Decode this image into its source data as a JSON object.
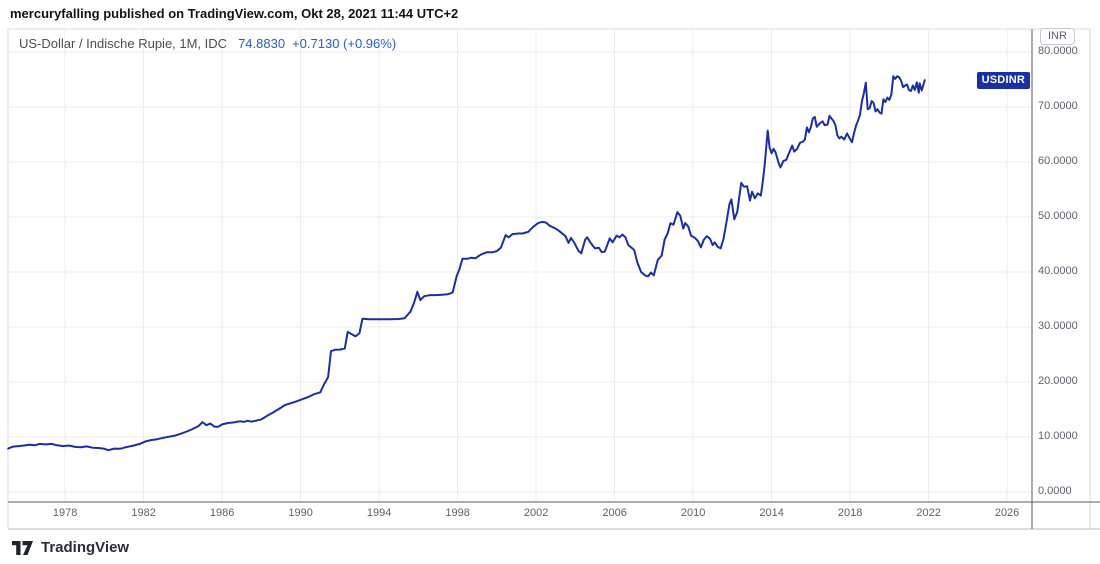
{
  "attribution": {
    "text": "mercuryfalling published on TradingView.com, Okt 28, 2021 11:44 UTC+2"
  },
  "legend": {
    "symbol_title": "US-Dollar / Indische Rupie, 1M, IDC",
    "price": "74.8830",
    "change": "+0.7130 (+0.96%)"
  },
  "price_axis": {
    "currency_badge": "INR",
    "labels": [
      "80.0000",
      "70.0000",
      "60.0000",
      "50.0000",
      "40.0000",
      "30.0000",
      "20.0000",
      "10.0000",
      "0.0000"
    ]
  },
  "time_axis": {
    "labels": [
      "1978",
      "1982",
      "1986",
      "1990",
      "1994",
      "1998",
      "2002",
      "2006",
      "2010",
      "2014",
      "2018",
      "2022",
      "2026"
    ]
  },
  "series_badge": {
    "label": "USDINR"
  },
  "footer": {
    "brand": "TradingView"
  },
  "colors": {
    "line": "#1b2fa4",
    "value_text": "#2a5bd7",
    "grid": "#ededf0",
    "axis_line": "#555a64",
    "frame": "#d8dbe1"
  },
  "chart_data": {
    "type": "line",
    "title": "US-Dollar / Indische Rupie, 1M, IDC",
    "symbol": "USDINR",
    "interval": "1M",
    "exchange": "IDC",
    "last_price": 74.883,
    "change_abs": 0.713,
    "change_pct": 0.96,
    "ylabel": "INR",
    "grid": true,
    "legend_position": "none",
    "xlim": [
      1975.09,
      2027.27
    ],
    "ylim": [
      0,
      80
    ],
    "x_ticks": [
      1978,
      1982,
      1986,
      1990,
      1994,
      1998,
      2002,
      2006,
      2010,
      2014,
      2018,
      2022,
      2026
    ],
    "y_ticks_desc": [
      80,
      70,
      60,
      50,
      40,
      30,
      20,
      10,
      0
    ],
    "points": [
      [
        1975.1,
        7.9
      ],
      [
        1975.35,
        8.25
      ],
      [
        1975.6,
        8.35
      ],
      [
        1975.9,
        8.45
      ],
      [
        1976.2,
        8.6
      ],
      [
        1976.45,
        8.5
      ],
      [
        1976.7,
        8.75
      ],
      [
        1977.0,
        8.65
      ],
      [
        1977.3,
        8.75
      ],
      [
        1977.6,
        8.5
      ],
      [
        1977.9,
        8.35
      ],
      [
        1978.2,
        8.45
      ],
      [
        1978.5,
        8.2
      ],
      [
        1978.8,
        8.15
      ],
      [
        1979.1,
        8.3
      ],
      [
        1979.4,
        8.05
      ],
      [
        1979.7,
        8.0
      ],
      [
        1980.0,
        7.85
      ],
      [
        1980.2,
        7.6
      ],
      [
        1980.5,
        7.9
      ],
      [
        1980.8,
        7.85
      ],
      [
        1981.1,
        8.15
      ],
      [
        1981.5,
        8.45
      ],
      [
        1981.8,
        8.75
      ],
      [
        1982.1,
        9.2
      ],
      [
        1982.4,
        9.45
      ],
      [
        1982.7,
        9.6
      ],
      [
        1983.0,
        9.85
      ],
      [
        1983.3,
        10.05
      ],
      [
        1983.6,
        10.25
      ],
      [
        1983.9,
        10.6
      ],
      [
        1984.2,
        11.0
      ],
      [
        1984.5,
        11.45
      ],
      [
        1984.8,
        12.0
      ],
      [
        1985.0,
        12.7
      ],
      [
        1985.2,
        12.15
      ],
      [
        1985.4,
        12.45
      ],
      [
        1985.6,
        11.9
      ],
      [
        1985.8,
        11.85
      ],
      [
        1986.0,
        12.3
      ],
      [
        1986.3,
        12.55
      ],
      [
        1986.6,
        12.65
      ],
      [
        1986.9,
        12.85
      ],
      [
        1987.1,
        12.75
      ],
      [
        1987.3,
        12.95
      ],
      [
        1987.5,
        12.8
      ],
      [
        1987.7,
        12.95
      ],
      [
        1988.0,
        13.2
      ],
      [
        1988.3,
        13.85
      ],
      [
        1988.6,
        14.45
      ],
      [
        1988.9,
        15.1
      ],
      [
        1989.2,
        15.8
      ],
      [
        1989.5,
        16.15
      ],
      [
        1989.8,
        16.5
      ],
      [
        1990.1,
        16.9
      ],
      [
        1990.4,
        17.3
      ],
      [
        1990.7,
        17.8
      ],
      [
        1991.0,
        18.1
      ],
      [
        1991.2,
        19.6
      ],
      [
        1991.4,
        20.9
      ],
      [
        1991.55,
        25.6
      ],
      [
        1991.75,
        25.85
      ],
      [
        1992.0,
        25.9
      ],
      [
        1992.25,
        26.1
      ],
      [
        1992.4,
        29.1
      ],
      [
        1992.6,
        28.7
      ],
      [
        1992.8,
        28.3
      ],
      [
        1993.0,
        28.9
      ],
      [
        1993.15,
        31.5
      ],
      [
        1993.5,
        31.4
      ],
      [
        1994.0,
        31.4
      ],
      [
        1994.5,
        31.4
      ],
      [
        1995.0,
        31.45
      ],
      [
        1995.3,
        31.6
      ],
      [
        1995.6,
        32.8
      ],
      [
        1995.8,
        34.6
      ],
      [
        1995.95,
        36.4
      ],
      [
        1996.1,
        34.9
      ],
      [
        1996.3,
        35.6
      ],
      [
        1996.6,
        35.8
      ],
      [
        1996.9,
        35.8
      ],
      [
        1997.2,
        35.85
      ],
      [
        1997.5,
        35.95
      ],
      [
        1997.75,
        36.3
      ],
      [
        1997.95,
        39.2
      ],
      [
        1998.1,
        40.6
      ],
      [
        1998.25,
        42.4
      ],
      [
        1998.5,
        42.4
      ],
      [
        1998.7,
        42.6
      ],
      [
        1998.9,
        42.5
      ],
      [
        1999.2,
        43.2
      ],
      [
        1999.5,
        43.6
      ],
      [
        1999.8,
        43.6
      ],
      [
        2000.0,
        43.8
      ],
      [
        2000.2,
        44.4
      ],
      [
        2000.45,
        46.7
      ],
      [
        2000.6,
        46.3
      ],
      [
        2000.8,
        46.9
      ],
      [
        2001.1,
        47.0
      ],
      [
        2001.3,
        47.0
      ],
      [
        2001.6,
        47.3
      ],
      [
        2001.85,
        48.2
      ],
      [
        2002.1,
        48.9
      ],
      [
        2002.3,
        49.1
      ],
      [
        2002.5,
        49.0
      ],
      [
        2002.7,
        48.4
      ],
      [
        2003.0,
        47.9
      ],
      [
        2003.2,
        47.4
      ],
      [
        2003.5,
        46.5
      ],
      [
        2003.65,
        45.3
      ],
      [
        2003.78,
        46.2
      ],
      [
        2003.95,
        45.3
      ],
      [
        2004.15,
        43.9
      ],
      [
        2004.3,
        43.4
      ],
      [
        2004.5,
        45.9
      ],
      [
        2004.6,
        46.3
      ],
      [
        2004.8,
        45.2
      ],
      [
        2005.0,
        44.3
      ],
      [
        2005.2,
        44.4
      ],
      [
        2005.35,
        43.6
      ],
      [
        2005.5,
        43.7
      ],
      [
        2005.75,
        46.1
      ],
      [
        2005.9,
        45.4
      ],
      [
        2006.1,
        46.6
      ],
      [
        2006.25,
        46.3
      ],
      [
        2006.4,
        46.8
      ],
      [
        2006.55,
        46.3
      ],
      [
        2006.7,
        44.9
      ],
      [
        2007.0,
        44.0
      ],
      [
        2007.15,
        41.8
      ],
      [
        2007.35,
        40.0
      ],
      [
        2007.55,
        39.4
      ],
      [
        2007.7,
        39.2
      ],
      [
        2007.85,
        39.9
      ],
      [
        2008.0,
        39.4
      ],
      [
        2008.2,
        42.2
      ],
      [
        2008.4,
        43.0
      ],
      [
        2008.55,
        45.9
      ],
      [
        2008.7,
        47.0
      ],
      [
        2008.85,
        48.9
      ],
      [
        2009.0,
        48.6
      ],
      [
        2009.2,
        50.9
      ],
      [
        2009.35,
        50.2
      ],
      [
        2009.5,
        47.9
      ],
      [
        2009.6,
        48.9
      ],
      [
        2009.75,
        48.3
      ],
      [
        2009.9,
        46.6
      ],
      [
        2010.1,
        46.2
      ],
      [
        2010.25,
        45.6
      ],
      [
        2010.4,
        44.5
      ],
      [
        2010.55,
        45.9
      ],
      [
        2010.7,
        46.5
      ],
      [
        2010.85,
        46.1
      ],
      [
        2011.0,
        44.9
      ],
      [
        2011.1,
        45.4
      ],
      [
        2011.25,
        44.6
      ],
      [
        2011.4,
        44.3
      ],
      [
        2011.55,
        46.0
      ],
      [
        2011.7,
        49.0
      ],
      [
        2011.85,
        52.3
      ],
      [
        2011.95,
        53.2
      ],
      [
        2012.1,
        49.6
      ],
      [
        2012.25,
        50.9
      ],
      [
        2012.45,
        56.2
      ],
      [
        2012.6,
        55.5
      ],
      [
        2012.75,
        55.6
      ],
      [
        2012.9,
        53.0
      ],
      [
        2013.0,
        54.6
      ],
      [
        2013.15,
        53.4
      ],
      [
        2013.3,
        54.3
      ],
      [
        2013.45,
        53.9
      ],
      [
        2013.55,
        56.5
      ],
      [
        2013.65,
        59.5
      ],
      [
        2013.8,
        65.7
      ],
      [
        2013.9,
        62.6
      ],
      [
        2014.0,
        61.6
      ],
      [
        2014.1,
        62.4
      ],
      [
        2014.2,
        61.8
      ],
      [
        2014.35,
        59.9
      ],
      [
        2014.45,
        59.0
      ],
      [
        2014.6,
        60.2
      ],
      [
        2014.75,
        60.4
      ],
      [
        2014.9,
        61.7
      ],
      [
        2015.05,
        63.0
      ],
      [
        2015.15,
        61.9
      ],
      [
        2015.3,
        62.4
      ],
      [
        2015.45,
        63.5
      ],
      [
        2015.6,
        63.7
      ],
      [
        2015.7,
        64.1
      ],
      [
        2015.8,
        66.3
      ],
      [
        2015.9,
        65.4
      ],
      [
        2016.0,
        66.3
      ],
      [
        2016.1,
        67.9
      ],
      [
        2016.2,
        68.2
      ],
      [
        2016.3,
        66.4
      ],
      [
        2016.45,
        67.0
      ],
      [
        2016.6,
        67.4
      ],
      [
        2016.7,
        66.7
      ],
      [
        2016.85,
        66.8
      ],
      [
        2016.95,
        68.4
      ],
      [
        2017.05,
        67.9
      ],
      [
        2017.15,
        67.5
      ],
      [
        2017.25,
        66.7
      ],
      [
        2017.35,
        64.9
      ],
      [
        2017.45,
        64.3
      ],
      [
        2017.55,
        64.6
      ],
      [
        2017.7,
        64.1
      ],
      [
        2017.85,
        65.2
      ],
      [
        2017.95,
        64.5
      ],
      [
        2018.05,
        63.9
      ],
      [
        2018.1,
        63.6
      ],
      [
        2018.2,
        65.2
      ],
      [
        2018.3,
        66.6
      ],
      [
        2018.4,
        67.5
      ],
      [
        2018.5,
        68.5
      ],
      [
        2018.6,
        71.0
      ],
      [
        2018.7,
        72.5
      ],
      [
        2018.8,
        74.4
      ],
      [
        2018.9,
        69.6
      ],
      [
        2019.0,
        69.8
      ],
      [
        2019.1,
        71.1
      ],
      [
        2019.2,
        70.7
      ],
      [
        2019.3,
        69.2
      ],
      [
        2019.4,
        69.6
      ],
      [
        2019.5,
        69.0
      ],
      [
        2019.6,
        68.8
      ],
      [
        2019.7,
        71.4
      ],
      [
        2019.8,
        70.9
      ],
      [
        2019.9,
        71.7
      ],
      [
        2020.0,
        71.3
      ],
      [
        2020.1,
        72.2
      ],
      [
        2020.2,
        75.6
      ],
      [
        2020.3,
        75.1
      ],
      [
        2020.4,
        75.6
      ],
      [
        2020.5,
        75.4
      ],
      [
        2020.6,
        74.8
      ],
      [
        2020.7,
        73.6
      ],
      [
        2020.8,
        73.9
      ],
      [
        2020.9,
        74.1
      ],
      [
        2021.0,
        73.1
      ],
      [
        2021.1,
        72.9
      ],
      [
        2021.2,
        73.9
      ],
      [
        2021.3,
        73.1
      ],
      [
        2021.4,
        74.5
      ],
      [
        2021.5,
        72.6
      ],
      [
        2021.55,
        74.3
      ],
      [
        2021.65,
        73.0
      ],
      [
        2021.75,
        74.2
      ],
      [
        2021.8,
        74.88
      ]
    ]
  }
}
